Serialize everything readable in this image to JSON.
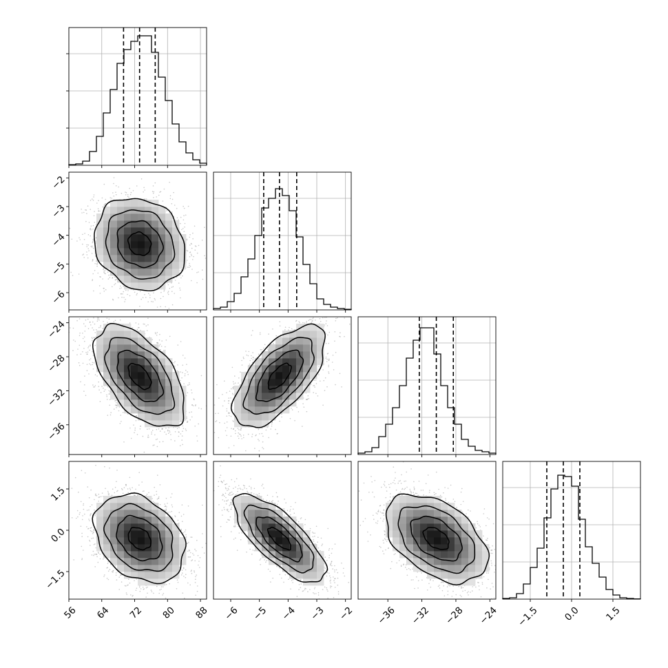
{
  "chart_data": {
    "type": "corner",
    "title": "",
    "variables": [
      {
        "index": 0,
        "range": [
          56,
          89.5
        ],
        "ticks": [
          56,
          64,
          72,
          80,
          88
        ],
        "tick_labels": [
          "56",
          "64",
          "72",
          "80",
          "88"
        ],
        "quantiles": [
          69.3,
          73.2,
          77.0
        ],
        "hist_bins_start": 56.0,
        "hist_bin_width": 1.675,
        "hist_values": [
          0.004,
          0.01,
          0.03,
          0.1,
          0.21,
          0.38,
          0.55,
          0.74,
          0.84,
          0.9,
          0.94,
          0.94,
          0.82,
          0.64,
          0.47,
          0.3,
          0.17,
          0.09,
          0.04,
          0.015
        ]
      },
      {
        "index": 1,
        "range": [
          -6.6,
          -1.8
        ],
        "ticks": [
          -6,
          -5,
          -4,
          -3,
          -2
        ],
        "tick_labels": [
          "−6",
          "−5",
          "−4",
          "−3",
          "−2"
        ],
        "quantiles": [
          -4.85,
          -4.3,
          -3.7
        ],
        "hist_bins_start": -6.6,
        "hist_bin_width": 0.24,
        "hist_values": [
          0.01,
          0.02,
          0.06,
          0.12,
          0.24,
          0.37,
          0.54,
          0.74,
          0.81,
          0.88,
          0.83,
          0.72,
          0.53,
          0.33,
          0.19,
          0.08,
          0.04,
          0.02,
          0.01,
          0.004
        ]
      },
      {
        "index": 2,
        "range": [
          -39.5,
          -23.3
        ],
        "ticks": [
          -36,
          -32,
          -28,
          -24
        ],
        "tick_labels": [
          "−36",
          "−32",
          "−28",
          "−24"
        ],
        "quantiles": [
          -32.3,
          -30.3,
          -28.3
        ],
        "hist_bins_start": -39.5,
        "hist_bin_width": 0.81,
        "hist_values": [
          0.01,
          0.02,
          0.05,
          0.13,
          0.22,
          0.34,
          0.5,
          0.7,
          0.83,
          0.92,
          0.92,
          0.73,
          0.5,
          0.34,
          0.22,
          0.11,
          0.06,
          0.03,
          0.02,
          0.01
        ]
      },
      {
        "index": 3,
        "range": [
          -2.5,
          2.5
        ],
        "ticks": [
          -1.5,
          0.0,
          1.5
        ],
        "tick_labels": [
          "−1.5",
          "0.0",
          "1.5"
        ],
        "quantiles": [
          -0.9,
          -0.3,
          0.3
        ],
        "hist_bins_start": -2.5,
        "hist_bin_width": 0.25,
        "hist_values": [
          0.005,
          0.01,
          0.04,
          0.11,
          0.23,
          0.37,
          0.59,
          0.8,
          0.9,
          0.89,
          0.82,
          0.58,
          0.38,
          0.26,
          0.16,
          0.07,
          0.03,
          0.01,
          0.005,
          0.002
        ]
      }
    ],
    "panels_2d": [
      {
        "x_var": 0,
        "y_var": 1,
        "mean": [
          73.2,
          -4.3
        ],
        "sd": [
          5.5,
          0.8
        ],
        "corr": -0.15
      },
      {
        "x_var": 0,
        "y_var": 2,
        "mean": [
          73.2,
          -30.3
        ],
        "sd": [
          5.5,
          3.0
        ],
        "corr": -0.55
      },
      {
        "x_var": 1,
        "y_var": 2,
        "mean": [
          -4.3,
          -30.3
        ],
        "sd": [
          0.8,
          3.0
        ],
        "corr": 0.65
      },
      {
        "x_var": 0,
        "y_var": 3,
        "mean": [
          73.2,
          -0.3
        ],
        "sd": [
          5.5,
          0.8
        ],
        "corr": -0.3
      },
      {
        "x_var": 1,
        "y_var": 3,
        "mean": [
          -4.3,
          -0.3
        ],
        "sd": [
          0.8,
          0.8
        ],
        "corr": -0.75
      },
      {
        "x_var": 2,
        "y_var": 3,
        "mean": [
          -30.3,
          -0.3
        ],
        "sd": [
          3.0,
          0.8
        ],
        "corr": -0.45
      }
    ],
    "contour_levels_sigma": [
      0.5,
      1.0,
      1.5,
      2.0
    ],
    "grid": true,
    "colors": {
      "line": "#000000",
      "grid": "#b0b0b0",
      "points": "#9a9a9a",
      "density_dark": "#000000",
      "background": "#ffffff"
    }
  }
}
